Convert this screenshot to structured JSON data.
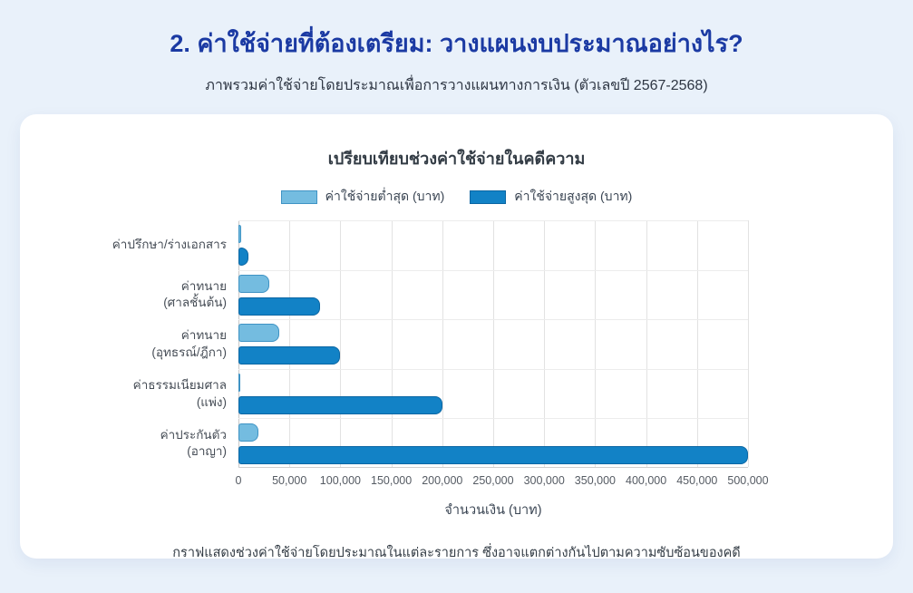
{
  "header": {
    "title": "2. ค่าใช้จ่ายที่ต้องเตรียม: วางแผนงบประมาณอย่างไร?",
    "subtitle": "ภาพรวมค่าใช้จ่ายโดยประมาณเพื่อการวางแผนทางการเงิน (ตัวเลขปี 2567-2568)"
  },
  "card": {
    "caption": "กราฟแสดงช่วงค่าใช้จ่ายโดยประมาณในแต่ละรายการ ซึ่งอาจแตกต่างกันไปตามความซับซ้อนของคดี"
  },
  "theme": {
    "page_bg": "#e9f1fa",
    "title_color": "#1b3aa3",
    "card_bg": "#ffffff"
  },
  "chart_data": {
    "type": "bar",
    "orientation": "horizontal",
    "title": "เปรียบเทียบช่วงค่าใช้จ่ายในคดีความ",
    "categories": [
      "ค่าปรึกษา/ร่างเอกสาร",
      "ค่าทนาย (ศาลชั้นต้น)",
      "ค่าทนาย (อุทธรณ์/ฎีกา)",
      "ค่าธรรมเนียมศาล (แพ่ง)",
      "ค่าประกันตัว (อาญา)"
    ],
    "categories_lines": [
      [
        "ค่าปรึกษา/ร่างเอกสาร"
      ],
      [
        "ค่าทนาย",
        "(ศาลชั้นต้น)"
      ],
      [
        "ค่าทนาย",
        "(อุทธรณ์/ฎีกา)"
      ],
      [
        "ค่าธรรมเนียมศาล",
        "(แพ่ง)"
      ],
      [
        "ค่าประกันตัว",
        "(อาญา)"
      ]
    ],
    "series": [
      {
        "name": "ค่าใช้จ่ายต่ำสุด (บาท)",
        "color": "#74bce0",
        "border_color": "#3f93c4",
        "values": [
          3000,
          30000,
          40000,
          1000,
          20000
        ]
      },
      {
        "name": "ค่าใช้จ่ายสูงสุด (บาท)",
        "color": "#1282c6",
        "border_color": "#0b66a3",
        "values": [
          10000,
          80000,
          100000,
          200000,
          500000
        ]
      }
    ],
    "xlabel": "จำนวนเงิน (บาท)",
    "xlim": [
      0,
      500000
    ],
    "xtick_values": [
      0,
      50000,
      100000,
      150000,
      200000,
      250000,
      300000,
      350000,
      400000,
      450000,
      500000
    ],
    "xtick_labels": [
      "0",
      "50,000",
      "100,000",
      "150,000",
      "200,000",
      "250,000",
      "300,000",
      "350,000",
      "400,000",
      "450,000",
      "500,000"
    ],
    "grid": true,
    "legend_position": "top"
  }
}
